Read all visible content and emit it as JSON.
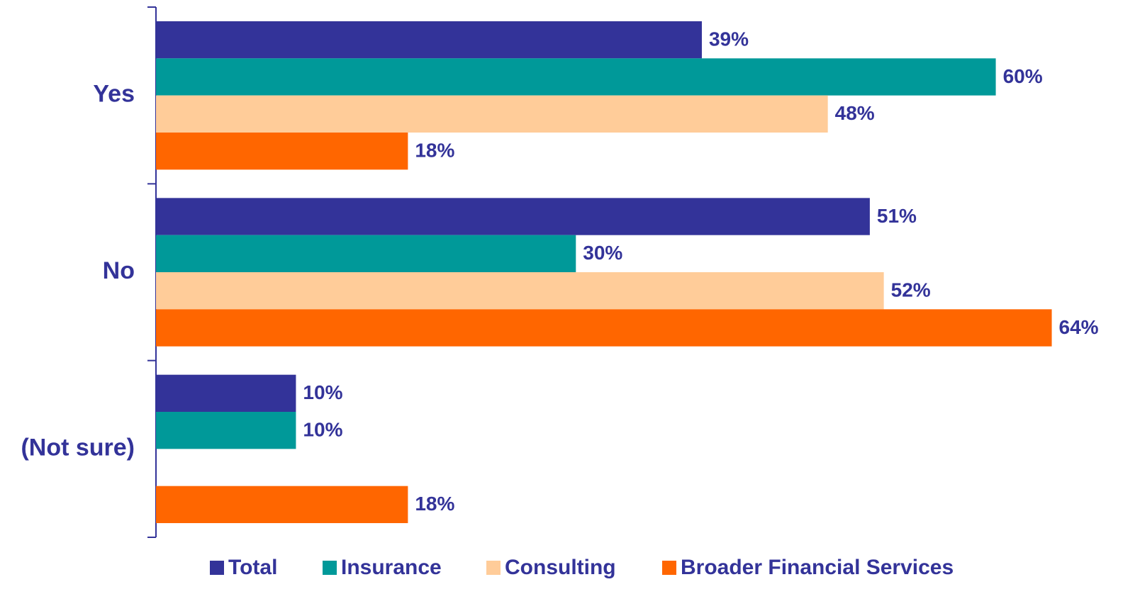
{
  "chart_data": {
    "type": "hbar",
    "categories": [
      "Yes",
      "No",
      "(Not sure)"
    ],
    "series": [
      {
        "name": "Total",
        "color": "#333399",
        "values": [
          39,
          51,
          10
        ],
        "value_labels": [
          "39%",
          "51%",
          "10%"
        ]
      },
      {
        "name": "Insurance",
        "color": "#009999",
        "values": [
          60,
          30,
          10
        ],
        "value_labels": [
          "60%",
          "30%",
          "10%"
        ]
      },
      {
        "name": "Consulting",
        "color": "#FFCC99",
        "values": [
          48,
          52,
          null
        ],
        "value_labels": [
          "48%",
          "52%",
          null
        ]
      },
      {
        "name": "Broader Financial Services",
        "color": "#FF6600",
        "values": [
          18,
          64,
          18
        ],
        "value_labels": [
          "18%",
          "64%",
          "18%"
        ]
      }
    ],
    "xlim": [
      0,
      70
    ],
    "legend": "bottom"
  }
}
